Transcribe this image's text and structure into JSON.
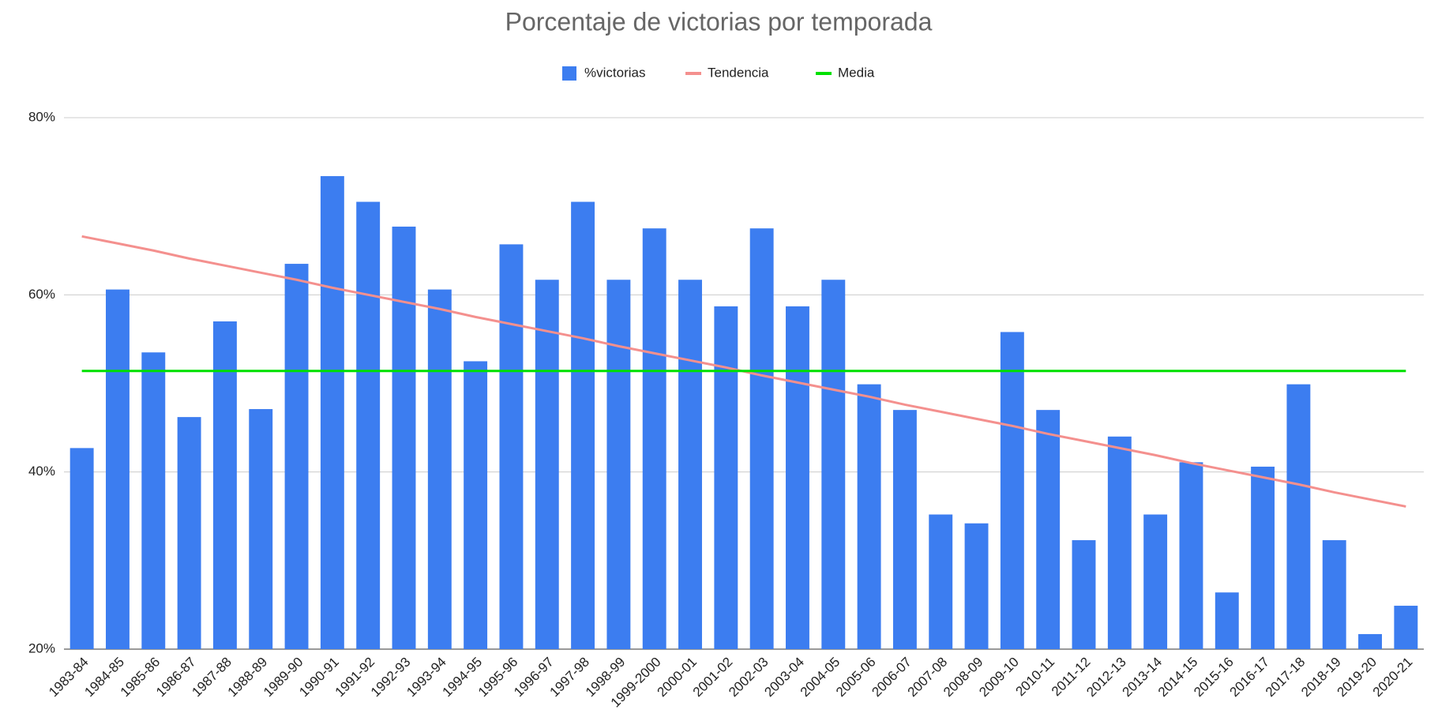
{
  "chart_data": {
    "type": "bar",
    "title": "Porcentaje de victorias por temporada",
    "categories": [
      "1983-84",
      "1984-85",
      "1985-86",
      "1986-87",
      "1987-88",
      "1988-89",
      "1989-90",
      "1990-91",
      "1991-92",
      "1992-93",
      "1993-94",
      "1994-95",
      "1995-96",
      "1996-97",
      "1997-98",
      "1998-99",
      "1999-2000",
      "2000-01",
      "2001-02",
      "2002-03",
      "2003-04",
      "2004-05",
      "2005-06",
      "2006-07",
      "2007-08",
      "2008-09",
      "2009-10",
      "2010-11",
      "2011-12",
      "2012-13",
      "2013-14",
      "2014-15",
      "2015-16",
      "2016-17",
      "2017-18",
      "2018-19",
      "2019-20",
      "2020-21"
    ],
    "series": [
      {
        "name": "%victorias",
        "type": "bar",
        "color": "#3c7df0",
        "values": [
          42.7,
          60.6,
          53.5,
          46.2,
          57.0,
          47.1,
          63.5,
          73.4,
          70.5,
          67.7,
          60.6,
          52.5,
          65.7,
          61.7,
          70.5,
          61.7,
          67.5,
          61.7,
          58.7,
          67.5,
          58.7,
          61.7,
          49.9,
          47.0,
          35.2,
          34.2,
          55.8,
          47.0,
          32.3,
          44.0,
          35.2,
          41.1,
          26.4,
          40.6,
          49.9,
          32.3,
          21.7,
          24.9
        ]
      },
      {
        "name": "Tendencia",
        "type": "line",
        "color": "#f4908e",
        "values": [
          66.6,
          65.8,
          65.0,
          64.1,
          63.3,
          62.5,
          61.7,
          60.8,
          60.0,
          59.2,
          58.4,
          57.5,
          56.7,
          55.9,
          55.1,
          54.2,
          53.4,
          52.6,
          51.8,
          50.9,
          50.1,
          49.3,
          48.5,
          47.6,
          46.8,
          46.0,
          45.2,
          44.3,
          43.5,
          42.7,
          41.9,
          41.0,
          40.2,
          39.4,
          38.6,
          37.7,
          36.9,
          36.1
        ]
      },
      {
        "name": "Media",
        "type": "line",
        "color": "#00e000",
        "values": [
          51.4,
          51.4,
          51.4,
          51.4,
          51.4,
          51.4,
          51.4,
          51.4,
          51.4,
          51.4,
          51.4,
          51.4,
          51.4,
          51.4,
          51.4,
          51.4,
          51.4,
          51.4,
          51.4,
          51.4,
          51.4,
          51.4,
          51.4,
          51.4,
          51.4,
          51.4,
          51.4,
          51.4,
          51.4,
          51.4,
          51.4,
          51.4,
          51.4,
          51.4,
          51.4,
          51.4,
          51.4,
          51.4
        ]
      }
    ],
    "ylim": [
      20,
      80
    ],
    "yticks": [
      {
        "value": 20,
        "label": "20%"
      },
      {
        "value": 40,
        "label": "40%"
      },
      {
        "value": 60,
        "label": "60%"
      },
      {
        "value": 80,
        "label": "80%"
      }
    ],
    "grid": true,
    "legend": "top"
  }
}
